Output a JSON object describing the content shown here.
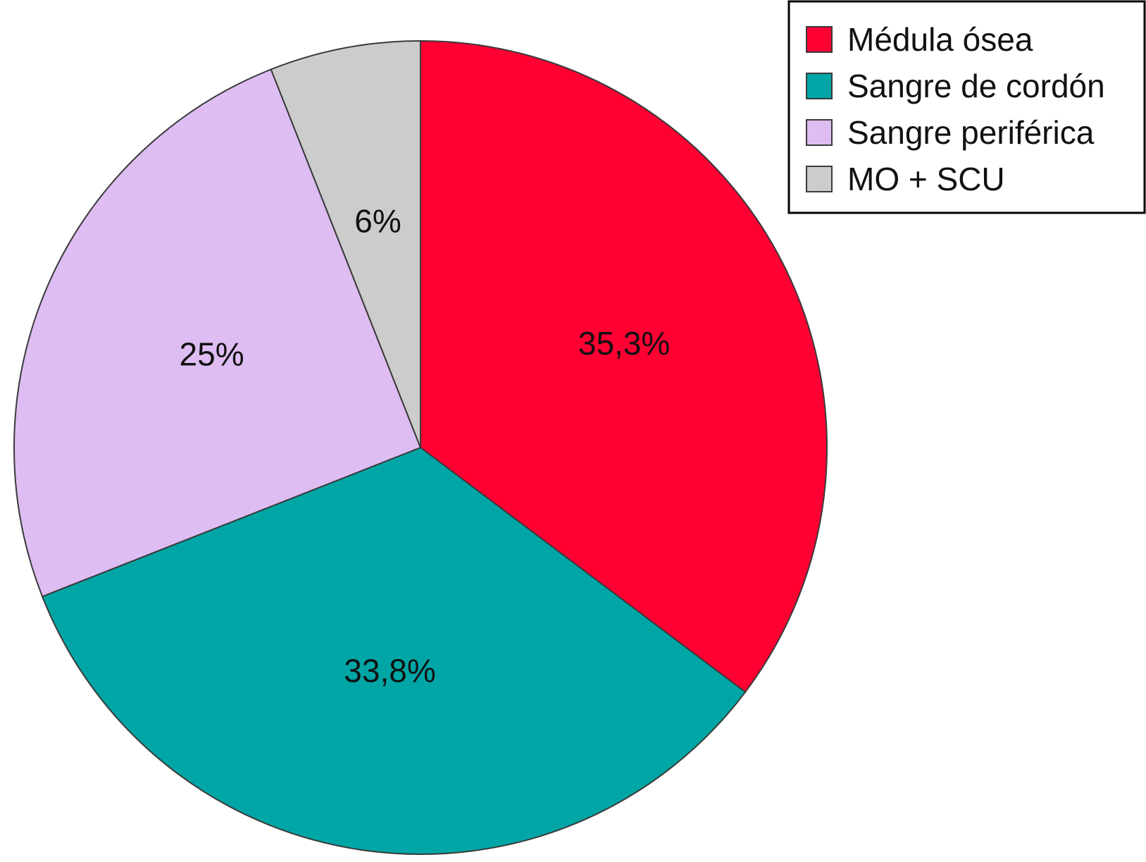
{
  "chart_data": {
    "type": "pie",
    "start_angle": "12 o'clock",
    "direction": "clockwise",
    "legend_position": "top-right",
    "slices": [
      {
        "name": "Médula ósea",
        "value": 35.3,
        "label": "35,3%",
        "color": "#ff0033"
      },
      {
        "name": "Sangre de cordón",
        "value": 33.8,
        "label": "33,8%",
        "color": "#00a6a6"
      },
      {
        "name": "Sangre periférica",
        "value": 25,
        "label": "25%",
        "color": "#ddbdf2"
      },
      {
        "name": "MO + SCU",
        "value": 6,
        "label": "6%",
        "color": "#cccccc"
      }
    ],
    "edge_color": "#3a3a3a"
  }
}
